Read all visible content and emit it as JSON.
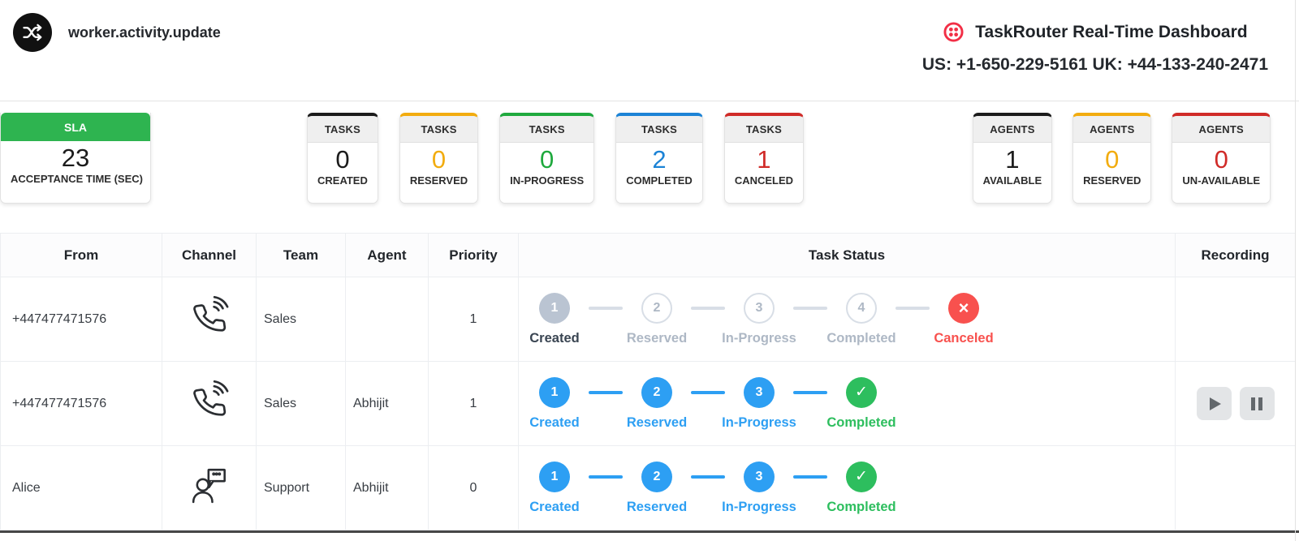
{
  "header": {
    "event_name": "worker.activity.update",
    "title": "TaskRouter Real-Time Dashboard",
    "phone_line": "US: +1-650-229-5161 UK: +44-133-240-2471"
  },
  "colors": {
    "black": "#1B1B1B",
    "amber": "#F2AC0F",
    "green": "#1FA93E",
    "blue": "#1C83D6",
    "red": "#D02B28",
    "sla_green": "#2EB450",
    "twilio_red": "#F22F46",
    "step_blue": "#2D9FF3",
    "step_green": "#2DBE5E",
    "step_red": "#F8514E",
    "step_gray": "#D8DEE6"
  },
  "sla_card": {
    "title": "SLA",
    "value": "23",
    "label": "ACCEPTANCE TIME (SEC)"
  },
  "card_groups": [
    {
      "id": "tasks",
      "cards": [
        {
          "group": "TASKS",
          "value": "0",
          "label": "CREATED",
          "accent": "black",
          "value_color": "black"
        },
        {
          "group": "TASKS",
          "value": "0",
          "label": "RESERVED",
          "accent": "amber",
          "value_color": "amber"
        },
        {
          "group": "TASKS",
          "value": "0",
          "label": "IN-PROGRESS",
          "accent": "green",
          "value_color": "green"
        },
        {
          "group": "TASKS",
          "value": "2",
          "label": "COMPLETED",
          "accent": "blue",
          "value_color": "blue"
        },
        {
          "group": "TASKS",
          "value": "1",
          "label": "CANCELED",
          "accent": "red",
          "value_color": "red"
        }
      ]
    },
    {
      "id": "agents",
      "cards": [
        {
          "group": "AGENTS",
          "value": "1",
          "label": "AVAILABLE",
          "accent": "black",
          "value_color": "black"
        },
        {
          "group": "AGENTS",
          "value": "0",
          "label": "RESERVED",
          "accent": "amber",
          "value_color": "amber"
        },
        {
          "group": "AGENTS",
          "value": "0",
          "label": "UN-AVAILABLE",
          "accent": "red",
          "value_color": "red"
        }
      ]
    }
  ],
  "table": {
    "columns": [
      "From",
      "Channel",
      "Team",
      "Agent",
      "Priority",
      "Task Status",
      "Recording"
    ],
    "rows": [
      {
        "from": "+447477471576",
        "channel": "phone",
        "team": "Sales",
        "agent": "",
        "priority": "1",
        "connector": "step_gray",
        "recording": false,
        "steps": [
          {
            "n": "1",
            "label": "Created",
            "state": "lead"
          },
          {
            "n": "2",
            "label": "Reserved",
            "state": "pending"
          },
          {
            "n": "3",
            "label": "In-Progress",
            "state": "pending"
          },
          {
            "n": "4",
            "label": "Completed",
            "state": "pending"
          },
          {
            "n": "×",
            "label": "Canceled",
            "state": "canceled"
          }
        ]
      },
      {
        "from": "+447477471576",
        "channel": "phone",
        "team": "Sales",
        "agent": "Abhijit",
        "priority": "1",
        "connector": "step_blue",
        "recording": true,
        "steps": [
          {
            "n": "1",
            "label": "Created",
            "state": "active"
          },
          {
            "n": "2",
            "label": "Reserved",
            "state": "active"
          },
          {
            "n": "3",
            "label": "In-Progress",
            "state": "active"
          },
          {
            "n": "✓",
            "label": "Completed",
            "state": "done"
          }
        ]
      },
      {
        "from": "Alice",
        "channel": "chat",
        "team": "Support",
        "agent": "Abhijit",
        "priority": "0",
        "connector": "step_blue",
        "recording": false,
        "steps": [
          {
            "n": "1",
            "label": "Created",
            "state": "active"
          },
          {
            "n": "2",
            "label": "Reserved",
            "state": "active"
          },
          {
            "n": "3",
            "label": "In-Progress",
            "state": "active"
          },
          {
            "n": "✓",
            "label": "Completed",
            "state": "done"
          }
        ]
      }
    ]
  }
}
